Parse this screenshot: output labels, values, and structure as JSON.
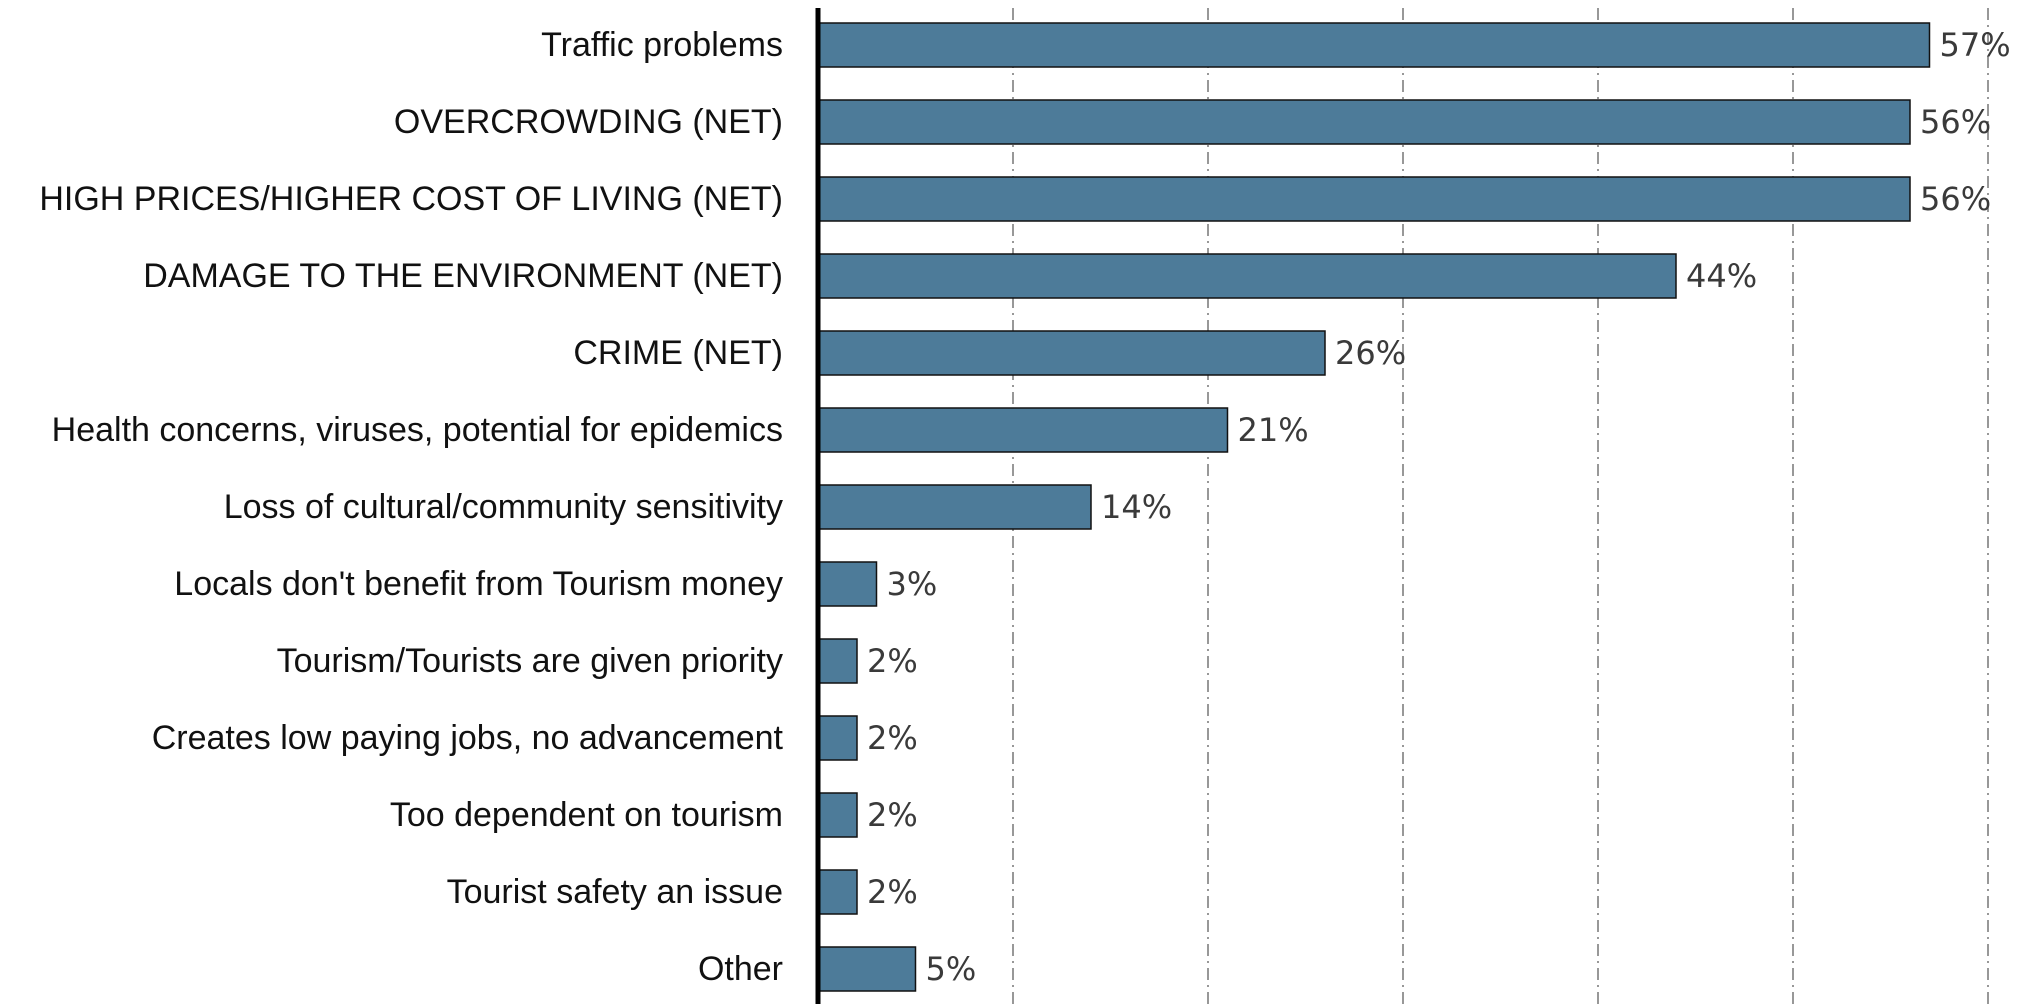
{
  "chart_data": {
    "type": "bar",
    "orientation": "horizontal",
    "categories": [
      "Traffic problems",
      "OVERCROWDING (NET)",
      "HIGH PRICES/HIGHER COST OF LIVING (NET)",
      "DAMAGE TO THE ENVIRONMENT (NET)",
      "CRIME (NET)",
      "Health concerns, viruses, potential for epidemics",
      "Loss of cultural/community sensitivity",
      "Locals don't benefit from Tourism money",
      "Tourism/Tourists are given priority",
      "Creates low paying jobs, no advancement",
      "Too dependent on tourism",
      "Tourist safety an issue",
      "Other"
    ],
    "values": [
      57,
      56,
      56,
      44,
      26,
      21,
      14,
      3,
      2,
      2,
      2,
      2,
      5
    ],
    "value_labels": [
      "57%",
      "56%",
      "56%",
      "44%",
      "26%",
      "21%",
      "14%",
      "3%",
      "2%",
      "2%",
      "2%",
      "2%",
      "5%"
    ],
    "title": "",
    "xlabel": "",
    "ylabel": "",
    "xlim": [
      0,
      60
    ],
    "grid": true,
    "grid_interval": 10,
    "bar_color": "#4d7b99",
    "legend": "none"
  }
}
